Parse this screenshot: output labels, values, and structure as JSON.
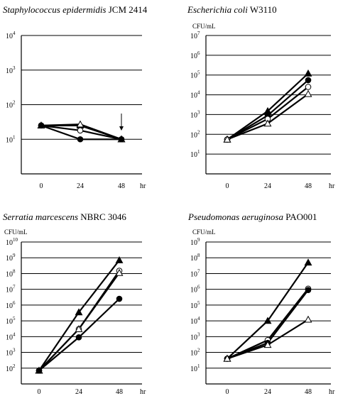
{
  "chart_data": [
    {
      "type": "line",
      "title_organism": "Staphylococcus epidermidis",
      "title_strain": "JCM 2414",
      "ylabel": "",
      "xlabel": "hr",
      "x": [
        "0",
        "24",
        "48"
      ],
      "y_scale": "log10",
      "ylim_exp": [
        0,
        4
      ],
      "y_ticks": [
        "10",
        "10",
        "10",
        "10"
      ],
      "y_tick_exps": [
        "1",
        "2",
        "3",
        "4"
      ],
      "grid": true,
      "annotation": "arrow at 48 hr",
      "series": [
        {
          "marker": "filled-triangle",
          "values": [
            25,
            25,
            10
          ]
        },
        {
          "marker": "open-triangle",
          "values": [
            25,
            27,
            10
          ]
        },
        {
          "marker": "open-circle",
          "values": [
            25,
            18,
            10
          ]
        },
        {
          "marker": "filled-circle",
          "values": [
            25,
            10,
            10
          ]
        }
      ]
    },
    {
      "type": "line",
      "title_organism": "Escherichia coli",
      "title_strain": "W3110",
      "ylabel": "CFU/mL",
      "xlabel": "hr",
      "x": [
        "0",
        "24",
        "48"
      ],
      "y_scale": "log10",
      "ylim_exp": [
        0,
        7
      ],
      "y_ticks": [
        "10",
        "10",
        "10",
        "10",
        "10",
        "10",
        "10"
      ],
      "y_tick_exps": [
        "1",
        "2",
        "3",
        "4",
        "5",
        "6",
        "7"
      ],
      "grid": true,
      "series": [
        {
          "marker": "filled-triangle",
          "values": [
            55,
            1500,
            120000
          ]
        },
        {
          "marker": "filled-circle",
          "values": [
            55,
            900,
            55000
          ]
        },
        {
          "marker": "open-circle",
          "values": [
            55,
            600,
            25000
          ]
        },
        {
          "marker": "open-triangle",
          "values": [
            55,
            350,
            11000
          ]
        }
      ]
    },
    {
      "type": "line",
      "title_organism": "Serratia marcescens",
      "title_strain": "NBRC 3046",
      "ylabel": "CFU/mL",
      "xlabel": "hr",
      "x": [
        "0",
        "24",
        "48"
      ],
      "y_scale": "log10",
      "ylim_exp": [
        1,
        10
      ],
      "y_ticks": [
        "10",
        "10",
        "10",
        "10",
        "10",
        "10",
        "10",
        "10",
        "10"
      ],
      "y_tick_exps": [
        "2",
        "3",
        "4",
        "5",
        "6",
        "7",
        "8",
        "9",
        "10"
      ],
      "grid": true,
      "series": [
        {
          "marker": "filled-triangle",
          "values": [
            70,
            350000,
            700000000
          ]
        },
        {
          "marker": "open-circle",
          "values": [
            70,
            30000,
            150000000
          ]
        },
        {
          "marker": "open-triangle",
          "values": [
            70,
            30000,
            110000000
          ]
        },
        {
          "marker": "filled-circle",
          "values": [
            70,
            9000,
            2500000
          ]
        }
      ]
    },
    {
      "type": "line",
      "title_organism": "Pseudomonas aeruginosa",
      "title_strain": "PAO001",
      "ylabel": "CFU/mL",
      "xlabel": "hr",
      "x": [
        "0",
        "24",
        "48"
      ],
      "y_scale": "log10",
      "ylim_exp": [
        0,
        9
      ],
      "y_ticks": [
        "10",
        "10",
        "10",
        "10",
        "10",
        "10",
        "10",
        "10",
        "10"
      ],
      "y_tick_exps": [
        "1",
        "2",
        "3",
        "4",
        "5",
        "6",
        "7",
        "8",
        "9"
      ],
      "grid": true,
      "series": [
        {
          "marker": "filled-triangle",
          "values": [
            40,
            10000,
            50000000
          ]
        },
        {
          "marker": "open-circle",
          "values": [
            40,
            600,
            1100000
          ]
        },
        {
          "marker": "filled-circle",
          "values": [
            40,
            400,
            900000
          ]
        },
        {
          "marker": "open-triangle",
          "values": [
            40,
            300,
            12000
          ]
        }
      ]
    }
  ]
}
